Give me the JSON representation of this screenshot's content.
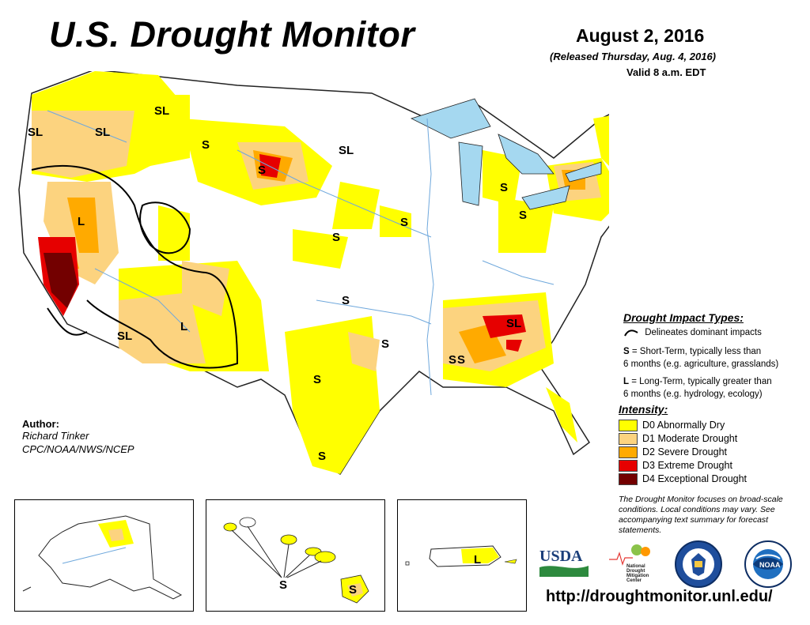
{
  "header": {
    "title": "U.S. Drought Monitor",
    "date": "August 2, 2016",
    "released": "(Released Thursday, Aug. 4, 2016)",
    "valid": "Valid 8 a.m. EDT"
  },
  "author": {
    "heading": "Author:",
    "name": "Richard Tinker",
    "org": "CPC/NOAA/NWS/NCEP"
  },
  "map_labels": [
    "SL",
    "SL",
    "SL",
    "SL",
    "S",
    "S",
    "SL",
    "SL",
    "L",
    "S",
    "S",
    "S",
    "S",
    "S",
    "S",
    "S",
    "L",
    "SL",
    "S",
    "S",
    "S"
  ],
  "inset_labels": [
    "S",
    "S",
    "L"
  ],
  "impact": {
    "heading": "Drought Impact Types:",
    "delineates": "Delineates dominant impacts",
    "s_key": "S",
    "s_text_1": "= Short-Term, typically less than",
    "s_text_2": "6 months (e.g. agriculture, grasslands)",
    "l_key": "L",
    "l_text_1": "= Long-Term, typically greater than",
    "l_text_2": "6 months (e.g. hydrology, ecology)"
  },
  "intensity": {
    "heading": "Intensity:",
    "levels": [
      {
        "label": "D0 Abnormally Dry",
        "color": "#ffff00"
      },
      {
        "label": "D1 Moderate Drought",
        "color": "#fcd37f"
      },
      {
        "label": "D2 Severe Drought",
        "color": "#ffaa00"
      },
      {
        "label": "D3 Extreme Drought",
        "color": "#e60000"
      },
      {
        "label": "D4 Exceptional Drought",
        "color": "#730000"
      }
    ]
  },
  "note": "The Drought Monitor focuses on broad-scale conditions. Local conditions may vary. See accompanying text summary for forecast statements.",
  "logos": {
    "usda": "USDA",
    "ndmc_1": "National",
    "ndmc_2": "Drought",
    "ndmc_3": "Mitigation",
    "ndmc_4": "Center",
    "noaa": "NOAA"
  },
  "url": "http://droughtmonitor.unl.edu/",
  "colors": {
    "d0": "#ffff00",
    "d1": "#fcd37f",
    "d2": "#ffaa00",
    "d3": "#e60000",
    "d4": "#730000",
    "water": "#a5d8f0",
    "river": "#6fa8dc"
  }
}
